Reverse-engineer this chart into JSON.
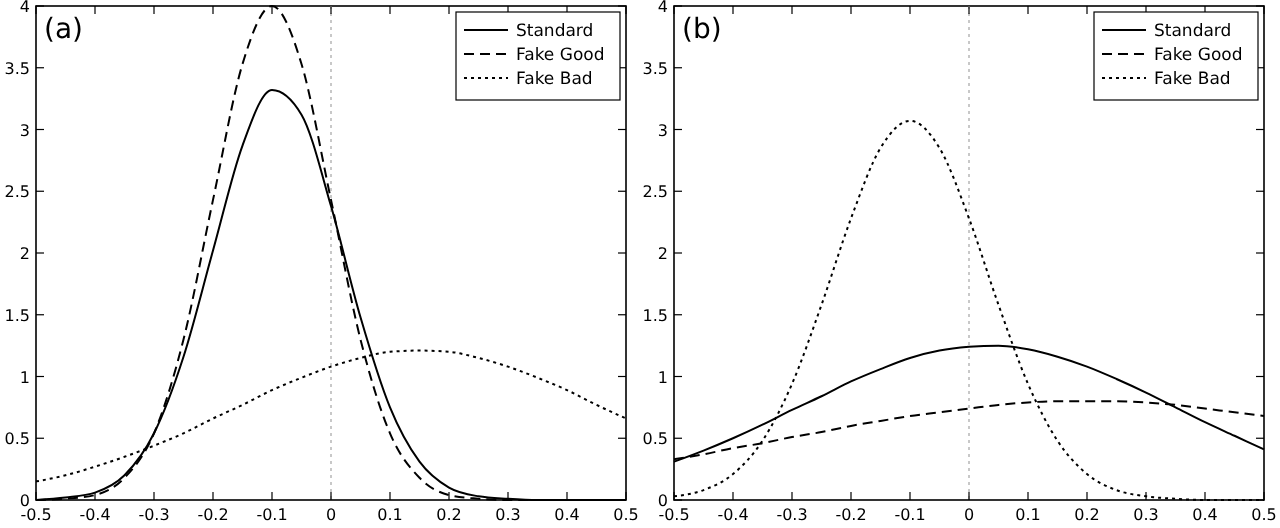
{
  "chart_data": [
    {
      "type": "line",
      "annotations": [
        "(a)"
      ],
      "x": [
        -0.5,
        -0.45,
        -0.4,
        -0.35,
        -0.3,
        -0.25,
        -0.2,
        -0.15,
        -0.1,
        -0.05,
        0,
        0.05,
        0.1,
        0.15,
        0.2,
        0.25,
        0.3,
        0.35,
        0.4,
        0.45,
        0.5
      ],
      "series": [
        {
          "name": "Standard",
          "color": "#000000",
          "line_style": "solid",
          "values": [
            0,
            0.02,
            0.06,
            0.2,
            0.54,
            1.16,
            2.02,
            2.87,
            3.32,
            3.12,
            2.38,
            1.48,
            0.75,
            0.31,
            0.1,
            0.03,
            0.01,
            0,
            0,
            0,
            0
          ]
        },
        {
          "name": "Fake Good",
          "color": "#000000",
          "line_style": "dashed",
          "values": [
            0,
            0.01,
            0.04,
            0.18,
            0.54,
            1.3,
            2.43,
            3.53,
            4,
            3.53,
            2.43,
            1.3,
            0.54,
            0.18,
            0.04,
            0.01,
            0,
            0,
            0,
            0,
            0
          ]
        },
        {
          "name": "Fake Bad",
          "color": "#000000",
          "line_style": "dotted",
          "values": [
            0.15,
            0.2,
            0.27,
            0.35,
            0.44,
            0.54,
            0.66,
            0.77,
            0.89,
            0.99,
            1.08,
            1.15,
            1.2,
            1.21,
            1.2,
            1.15,
            1.08,
            0.99,
            0.89,
            0.77,
            0.66
          ]
        }
      ],
      "xlim": [
        -0.5,
        0.5
      ],
      "xticks": [
        -0.5,
        -0.4,
        -0.3,
        -0.2,
        -0.1,
        0,
        0.1,
        0.2,
        0.3,
        0.4,
        0.5
      ],
      "ylim": [
        0,
        4
      ],
      "yticks": [
        0,
        0.5,
        1,
        1.5,
        2,
        2.5,
        3,
        3.5,
        4
      ],
      "ref_lines": [
        {
          "axis": "x",
          "value": 0,
          "color": "#c8c8c8",
          "line_style": "dotted"
        }
      ],
      "legend": "top right",
      "grid": false
    },
    {
      "type": "line",
      "annotations": [
        "(b)"
      ],
      "x": [
        -0.5,
        -0.45,
        -0.4,
        -0.35,
        -0.3,
        -0.25,
        -0.2,
        -0.15,
        -0.1,
        -0.05,
        0,
        0.05,
        0.1,
        0.15,
        0.2,
        0.25,
        0.3,
        0.35,
        0.4,
        0.45,
        0.5
      ],
      "series": [
        {
          "name": "Standard",
          "color": "#000000",
          "line_style": "solid",
          "values": [
            0.31,
            0.4,
            0.5,
            0.61,
            0.73,
            0.84,
            0.96,
            1.06,
            1.15,
            1.21,
            1.24,
            1.25,
            1.22,
            1.16,
            1.08,
            0.98,
            0.87,
            0.75,
            0.63,
            0.52,
            0.41
          ]
        },
        {
          "name": "Fake Good",
          "color": "#000000",
          "line_style": "dashed",
          "values": [
            0.33,
            0.37,
            0.42,
            0.46,
            0.51,
            0.55,
            0.6,
            0.64,
            0.68,
            0.71,
            0.74,
            0.77,
            0.79,
            0.8,
            0.8,
            0.8,
            0.79,
            0.77,
            0.74,
            0.71,
            0.68
          ]
        },
        {
          "name": "Fake Bad",
          "color": "#000000",
          "line_style": "dotted",
          "values": [
            0.03,
            0.08,
            0.21,
            0.48,
            0.94,
            1.58,
            2.28,
            2.85,
            3.07,
            2.85,
            2.28,
            1.58,
            0.94,
            0.48,
            0.21,
            0.08,
            0.03,
            0.01,
            0,
            0,
            0
          ]
        }
      ],
      "xlim": [
        -0.5,
        0.5
      ],
      "xticks": [
        -0.5,
        -0.4,
        -0.3,
        -0.2,
        -0.1,
        0,
        0.1,
        0.2,
        0.3,
        0.4,
        0.5
      ],
      "ylim": [
        0,
        4
      ],
      "yticks": [
        0,
        0.5,
        1,
        1.5,
        2,
        2.5,
        3,
        3.5,
        4
      ],
      "ref_lines": [
        {
          "axis": "x",
          "value": 0,
          "color": "#c8c8c8",
          "line_style": "dotted"
        }
      ],
      "legend": "top right",
      "grid": false
    }
  ]
}
